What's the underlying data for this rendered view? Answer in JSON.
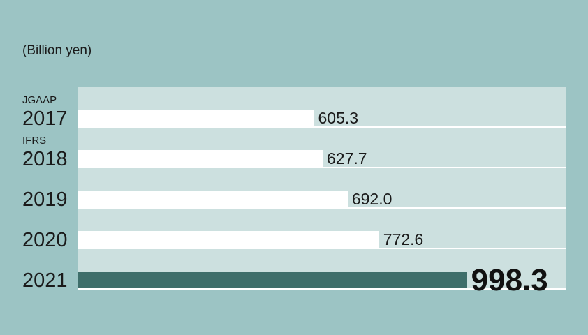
{
  "unit_label": "(Billion yen)",
  "chart_data": {
    "type": "bar",
    "orientation": "horizontal",
    "categories": [
      "2017",
      "2018",
      "2019",
      "2020",
      "2021"
    ],
    "category_notes": [
      "JGAAP",
      "IFRS",
      "",
      "",
      ""
    ],
    "values": [
      605.3,
      627.7,
      692.0,
      772.6,
      998.3
    ],
    "value_labels": [
      "605.3",
      "627.7",
      "692.0",
      "772.6",
      "998.3"
    ],
    "highlight_index": 4,
    "xlim": [
      0,
      1000
    ],
    "grid": false
  },
  "colors": {
    "background": "#9cc4c4",
    "panel": "#cce0df",
    "bar": "#ffffff",
    "highlight_bar": "#3e6e6a"
  }
}
